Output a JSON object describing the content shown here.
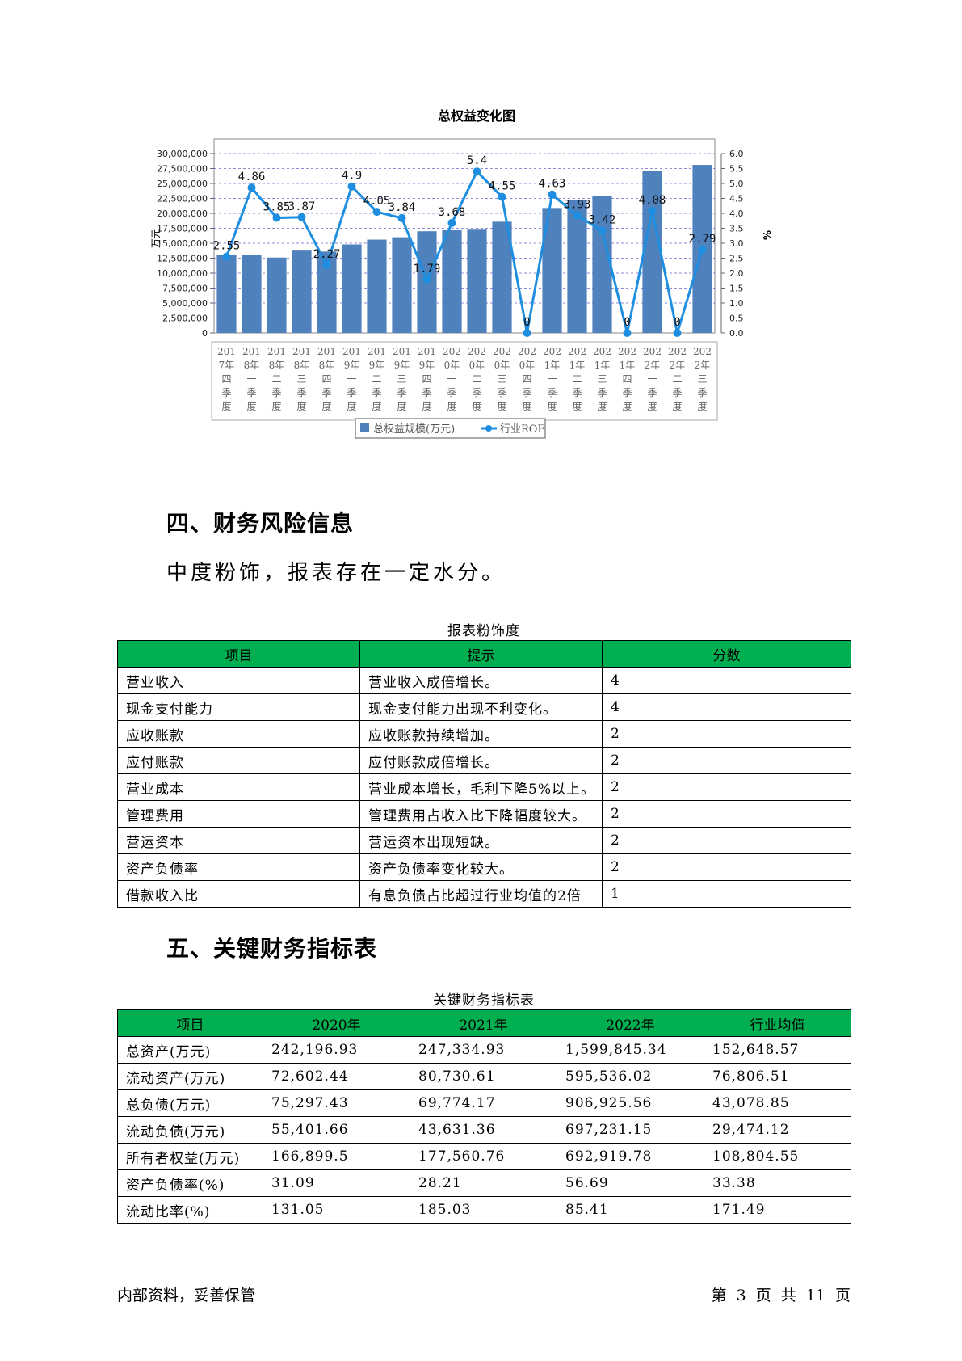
{
  "chart_data": {
    "type": "bar",
    "title": "总权益变化图",
    "ylabel": "万元",
    "y2label": "%",
    "ylim": [
      0,
      30000000
    ],
    "y2lim": [
      0,
      6.0
    ],
    "y_ticks": [
      "0",
      "2,500,000",
      "5,000,000",
      "7,500,000",
      "10,000,000",
      "12,500,000",
      "15,000,000",
      "17,500,000",
      "20,000,000",
      "22,500,000",
      "25,000,000",
      "27,500,000",
      "30,000,000"
    ],
    "y2_ticks": [
      "0.0",
      "0.5",
      "1.0",
      "1.5",
      "2.0",
      "2.5",
      "3.0",
      "3.5",
      "4.0",
      "4.5",
      "5.0",
      "5.5",
      "6.0"
    ],
    "grid": true,
    "legend_position": "bottom",
    "categories": [
      "2017年四季度",
      "2018年一季度",
      "2018年二季度",
      "2018年三季度",
      "2018年四季度",
      "2019年一季度",
      "2019年二季度",
      "2019年三季度",
      "2019年四季度",
      "2020年一季度",
      "2020年二季度",
      "2020年三季度",
      "2020年四季度",
      "2021年一季度",
      "2021年二季度",
      "2021年三季度",
      "2021年四季度",
      "2022年一季度",
      "2022年二季度",
      "2022年三季度"
    ],
    "series": [
      {
        "name": "总权益规模(万元)",
        "type": "bar",
        "color": "#4f81bd",
        "values": [
          13000000,
          13100000,
          12600000,
          13900000,
          13600000,
          14800000,
          15600000,
          16000000,
          17000000,
          17300000,
          17400000,
          18600000,
          null,
          20900000,
          22300000,
          22900000,
          null,
          27100000,
          null,
          28100000
        ]
      },
      {
        "name": "行业ROE",
        "type": "line",
        "color": "#1e8fe0",
        "values": [
          2.55,
          4.86,
          3.85,
          3.87,
          2.27,
          4.9,
          4.05,
          3.84,
          1.79,
          3.68,
          5.4,
          4.55,
          0,
          4.63,
          3.93,
          3.42,
          0,
          4.08,
          0,
          2.79
        ]
      }
    ]
  },
  "section4": {
    "heading": "四、财务风险信息",
    "summary": "中度粉饰，报表存在一定水分。",
    "table_caption": "报表粉饰度",
    "headers": [
      "项目",
      "提示",
      "分数"
    ],
    "rows": [
      [
        "营业收入",
        "营业收入成倍增长。",
        "4"
      ],
      [
        "现金支付能力",
        "现金支付能力出现不利变化。",
        "4"
      ],
      [
        "应收账款",
        "应收账款持续增加。",
        "2"
      ],
      [
        "应付账款",
        "应付账款成倍增长。",
        "2"
      ],
      [
        "营业成本",
        "营业成本增长，毛利下降5%以上。",
        "2"
      ],
      [
        "管理费用",
        "管理费用占收入比下降幅度较大。",
        "2"
      ],
      [
        "营运资本",
        "营运资本出现短缺。",
        "2"
      ],
      [
        "资产负债率",
        "资产负债率变化较大。",
        "2"
      ],
      [
        "借款收入比",
        "有息负债占比超过行业均值的2倍",
        "1"
      ]
    ]
  },
  "section5": {
    "heading": "五、关键财务指标表",
    "table_caption": "关键财务指标表",
    "headers": [
      "项目",
      "2020年",
      "2021年",
      "2022年",
      "行业均值"
    ],
    "rows": [
      [
        "总资产(万元)",
        "242,196.93",
        "247,334.93",
        "1,599,845.34",
        "152,648.57"
      ],
      [
        "流动资产(万元)",
        "72,602.44",
        "80,730.61",
        "595,536.02",
        "76,806.51"
      ],
      [
        "总负债(万元)",
        "75,297.43",
        "69,774.17",
        "906,925.56",
        "43,078.85"
      ],
      [
        "流动负债(万元)",
        "55,401.66",
        "43,631.36",
        "697,231.15",
        "29,474.12"
      ],
      [
        "所有者权益(万元)",
        "166,899.5",
        "177,560.76",
        "692,919.78",
        "108,804.55"
      ],
      [
        "资产负债率(%)",
        "31.09",
        "28.21",
        "56.69",
        "33.38"
      ],
      [
        "流动比率(%)",
        "131.05",
        "185.03",
        "85.41",
        "171.49"
      ]
    ]
  },
  "footer": {
    "left": "内部资料，妥善保管",
    "right": "第 3 页 共 11 页"
  }
}
